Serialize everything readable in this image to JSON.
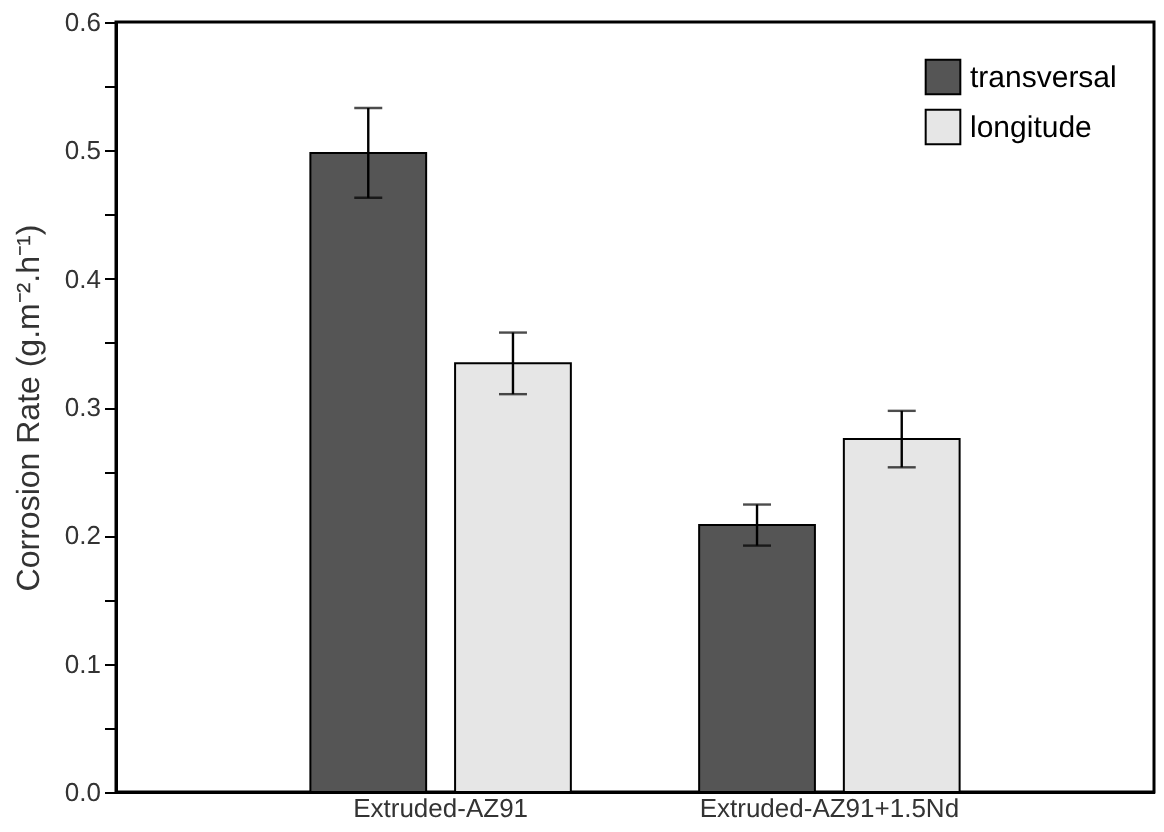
{
  "chart_data": {
    "type": "bar",
    "ylabel": "Corrosion Rate (g.m⁻².h⁻¹)",
    "categories": [
      "Extruded-AZ91",
      "Extruded-AZ91+1.5Nd"
    ],
    "series": [
      {
        "name": "transversal",
        "color": "#555555",
        "values": [
          0.498,
          0.208
        ],
        "errors": [
          0.035,
          0.016
        ]
      },
      {
        "name": "longitude",
        "color": "#e6e6e6",
        "values": [
          0.334,
          0.275
        ],
        "errors": [
          0.024,
          0.022
        ]
      }
    ],
    "ylim": [
      0,
      0.6
    ],
    "yticks": [
      {
        "value": 0,
        "label": "0.0"
      },
      {
        "value": 0.05,
        "label": null
      },
      {
        "value": 0.1,
        "label": "0.1"
      },
      {
        "value": 0.15,
        "label": null
      },
      {
        "value": 0.2,
        "label": "0.2"
      },
      {
        "value": 0.25,
        "label": null
      },
      {
        "value": 0.3,
        "label": "0.3"
      },
      {
        "value": 0.35,
        "label": null
      },
      {
        "value": 0.4,
        "label": "0.4"
      },
      {
        "value": 0.45,
        "label": null
      },
      {
        "value": 0.5,
        "label": "0.5"
      },
      {
        "value": 0.55,
        "label": null
      },
      {
        "value": 0.6,
        "label": "0.6"
      }
    ],
    "legend": "top right",
    "grid": false
  }
}
